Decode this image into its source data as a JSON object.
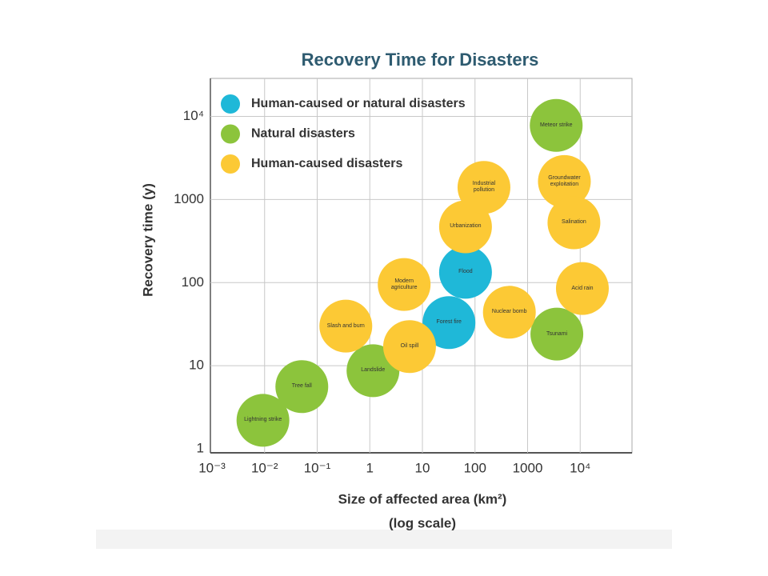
{
  "chart_data": {
    "type": "scatter",
    "title": "Recovery Time for Disasters",
    "x_label": "Size of affected area (km²)",
    "x_label_note": "(log scale)",
    "y_label": "Recovery time (y)",
    "x_log": true,
    "y_log": true,
    "grid": true,
    "legend": "upper left",
    "xlim": [
      0.001,
      100000
    ],
    "ylim": [
      1,
      30000
    ],
    "xticks": [
      {
        "value": 0.001,
        "label": "10⁻³"
      },
      {
        "value": 0.01,
        "label": "10⁻²"
      },
      {
        "value": 0.1,
        "label": "10⁻¹"
      },
      1,
      10,
      100,
      1000,
      {
        "value": 10000,
        "label": "10⁴"
      }
    ],
    "yticks": [
      1,
      10,
      100,
      1000,
      {
        "value": 10000,
        "label": "10⁴"
      }
    ],
    "series": [
      {
        "name": "Human-caused or natural disasters",
        "color": "#1fb8d8",
        "x": [
          32,
          66
        ],
        "values": [
          33,
          133
        ],
        "labels": [
          "Forest fire",
          "Flood"
        ]
      },
      {
        "name": "Natural disasters",
        "color": "#8cc43c",
        "x": [
          0.0093,
          0.051,
          1.15,
          3500,
          3600
        ],
        "values": [
          2.2,
          5.6,
          8.7,
          7800,
          24
        ],
        "labels": [
          "Lightning strike",
          "Tree fall",
          "Landslide",
          "Meteor strike",
          "Tsunami"
        ]
      },
      {
        "name": "Human-caused disasters",
        "color": "#fcc935",
        "x": [
          0.35,
          5.7,
          4.5,
          66,
          148,
          450,
          5000,
          7600,
          11000
        ],
        "values": [
          30,
          17,
          95,
          470,
          1400,
          44,
          1650,
          525,
          85
        ],
        "labels": [
          "Slash and burn",
          "Oil spill",
          "Modern agriculture",
          "Urbanization",
          "Industrial pollution",
          "Nuclear bomb",
          "Groundwater exploitation",
          "Salination",
          "Acid rain"
        ]
      }
    ]
  }
}
